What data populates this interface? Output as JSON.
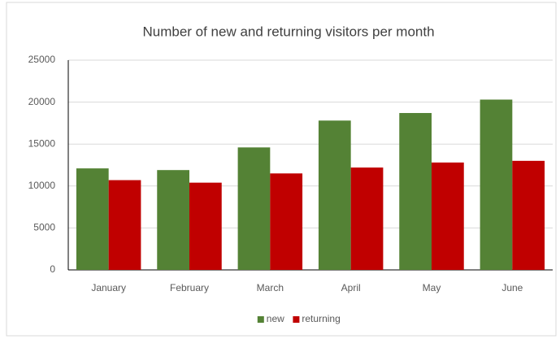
{
  "chart_data": {
    "type": "bar",
    "title": "Number of new and returning visitors per month",
    "categories": [
      "January",
      "February",
      "March",
      "April",
      "May",
      "June"
    ],
    "series": [
      {
        "name": "new",
        "color": "#548235",
        "values": [
          12100,
          11900,
          14600,
          17800,
          18700,
          20300
        ]
      },
      {
        "name": "returning",
        "color": "#c00000",
        "values": [
          10700,
          10400,
          11500,
          12200,
          12800,
          13000
        ]
      }
    ],
    "ylim": [
      0,
      25000
    ],
    "yticks": [
      0,
      5000,
      10000,
      15000,
      20000,
      25000
    ],
    "grid": true,
    "legend": "bottom"
  }
}
